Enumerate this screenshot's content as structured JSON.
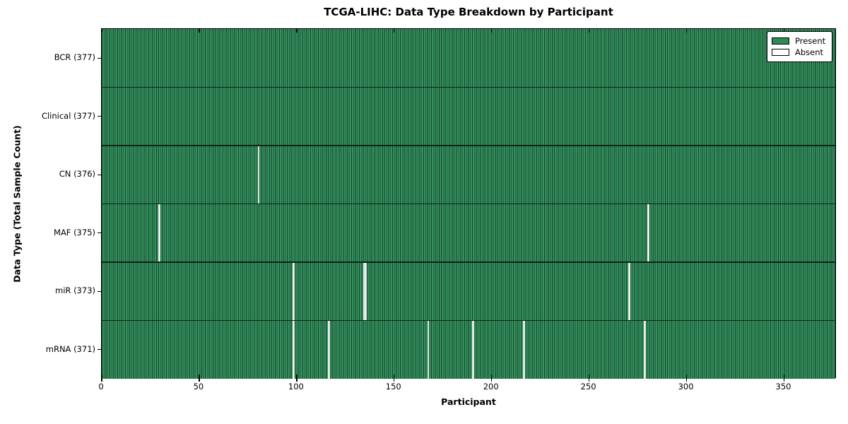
{
  "figure": {
    "title": "TCGA-LIHC: Data Type Breakdown by Participant",
    "xlabel": "Participant",
    "ylabel": "Data Type (Total Sample Count)"
  },
  "chart_data": {
    "type": "heatmap",
    "title": "TCGA-LIHC: Data Type Breakdown by Participant",
    "xlabel": "Participant",
    "ylabel": "Data Type (Total Sample Count)",
    "x_range": [
      0,
      377
    ],
    "x_ticks": [
      0,
      50,
      100,
      150,
      200,
      250,
      300,
      350
    ],
    "total_participants": 377,
    "grid": false,
    "legend": {
      "position": "upper-right",
      "entries": [
        {
          "label": "Present",
          "color": "#2e8b57"
        },
        {
          "label": "Absent",
          "color": "#ffffff"
        }
      ]
    },
    "rows": [
      {
        "label": "BCR (377)",
        "data_type": "BCR",
        "total_samples": 377,
        "absent_participants": []
      },
      {
        "label": "Clinical (377)",
        "data_type": "Clinical",
        "total_samples": 377,
        "absent_participants": []
      },
      {
        "label": "CN (376)",
        "data_type": "CN",
        "total_samples": 376,
        "absent_participants": [
          80
        ]
      },
      {
        "label": "MAF (375)",
        "data_type": "MAF",
        "total_samples": 375,
        "absent_participants": [
          29,
          280
        ]
      },
      {
        "label": "miR (373)",
        "data_type": "miR",
        "total_samples": 373,
        "absent_participants": [
          98,
          134,
          135,
          270
        ]
      },
      {
        "label": "mRNA (371)",
        "data_type": "mRNA",
        "total_samples": 371,
        "absent_participants": [
          98,
          116,
          167,
          190,
          216,
          278
        ]
      }
    ],
    "colors": {
      "present": "#2e8b57",
      "present_edge": "#143f28",
      "present_highlight": "#45a271",
      "absent": "#ffffff",
      "row_boundary": "#0b2416",
      "axis": "#000000"
    }
  }
}
